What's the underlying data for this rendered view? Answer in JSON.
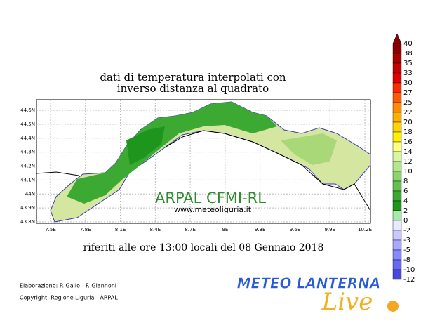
{
  "title_lines": [
    "dati di temperatura interpolati con",
    "inverso distanza al quadrato"
  ],
  "map": {
    "lat_labels": [
      "44.6N",
      "44.5N",
      "44.4N",
      "44.3N",
      "44.2N",
      "44.1N",
      "44N",
      "43.9N",
      "43.8N"
    ],
    "lon_labels": [
      "7.5E",
      "7.8E",
      "8.1E",
      "8.4E",
      "8.7E",
      "9E",
      "9.3E",
      "9.6E",
      "9.9E",
      "10.2E"
    ],
    "watermark": "ARPAL  CFMI-RL",
    "website": "www.meteoliguria.it"
  },
  "subtitle": "riferiti alle ore 13:00 locali del 08 Gennaio 2018",
  "credits": [
    "Elaborazione: P. Gallo - F. Giannoni",
    "Copyright: Regione Liguria - ARPAL"
  ],
  "colorbar": {
    "labels": [
      "40",
      "38",
      "35",
      "33",
      "30",
      "27",
      "25",
      "22",
      "20",
      "18",
      "16",
      "14",
      "12",
      "10",
      "8",
      "6",
      "4",
      "2",
      "0",
      "-2",
      "-3",
      "-5",
      "-8",
      "-10",
      "-12"
    ],
    "colors": [
      "#8b0000",
      "#a80000",
      "#c80000",
      "#e40000",
      "#ff2a00",
      "#ff5a00",
      "#ff8c00",
      "#ffb000",
      "#ffd400",
      "#fff000",
      "#ffff80",
      "#d8f5a0",
      "#b4e68c",
      "#8cd46e",
      "#64c050",
      "#3caa32",
      "#1e961e",
      "#a8e8a8",
      "#e8e8ff",
      "#c8c8ff",
      "#a8a8ff",
      "#8888ff",
      "#6868f0",
      "#4848e0"
    ]
  },
  "logo": {
    "text": "METEO LANTERNA",
    "script": "Live"
  }
}
